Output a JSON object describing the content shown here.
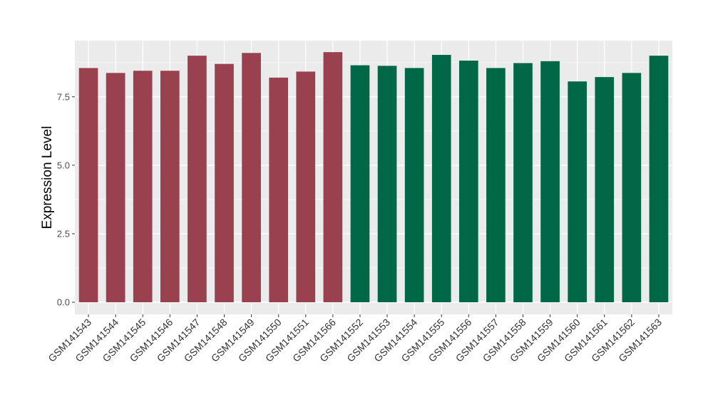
{
  "chart_data": {
    "type": "bar",
    "title": "",
    "xlabel": "",
    "ylabel": "Expression Level",
    "ylim": [
      0,
      9.55
    ],
    "yticks": [
      "0.0",
      "2.5",
      "5.0",
      "7.5"
    ],
    "grid": true,
    "legend": "none",
    "categories": [
      "GSM141543",
      "GSM141544",
      "GSM141545",
      "GSM141546",
      "GSM141547",
      "GSM141548",
      "GSM141549",
      "GSM141550",
      "GSM141551",
      "GSM141566",
      "GSM141552",
      "GSM141553",
      "GSM141554",
      "GSM141555",
      "GSM141556",
      "GSM141557",
      "GSM141558",
      "GSM141559",
      "GSM141560",
      "GSM141561",
      "GSM141562",
      "GSM141563"
    ],
    "values": [
      8.55,
      8.37,
      8.45,
      8.45,
      9.0,
      8.7,
      9.1,
      8.2,
      8.42,
      9.13,
      8.65,
      8.63,
      8.55,
      9.03,
      8.82,
      8.55,
      8.73,
      8.8,
      8.06,
      8.22,
      8.37,
      9.0
    ],
    "group_sizes": [
      10,
      12
    ],
    "colors": {
      "group1": "#99414f",
      "group2": "#006846",
      "panel_bg": "#ebebeb",
      "grid": "#ffffff"
    }
  }
}
